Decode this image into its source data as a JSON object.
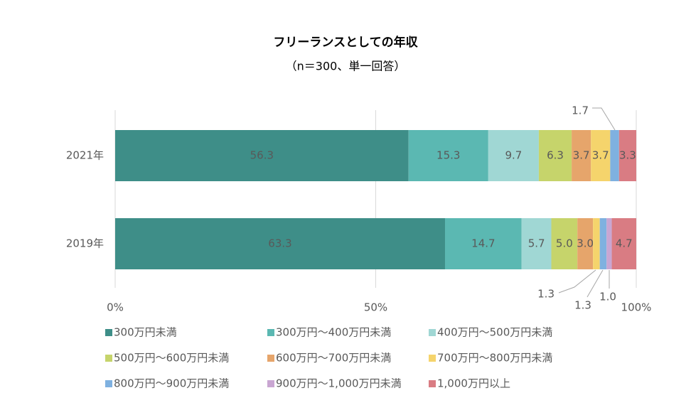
{
  "chart_data": {
    "type": "stacked_barh",
    "title": "フリーランスとしての年収",
    "subtitle": "（n＝300、単一回答）",
    "categories": [
      "2021年",
      "2019年"
    ],
    "xlim": [
      0,
      100
    ],
    "xticks": [
      {
        "value": 0,
        "label": "0%"
      },
      {
        "value": 50,
        "label": "50%"
      },
      {
        "value": 100,
        "label": "100%"
      }
    ],
    "grid": true,
    "legend": "bottom",
    "series": [
      {
        "name": "300万円未満",
        "color": "#3e8e88",
        "values": [
          56.3,
          63.3
        ],
        "value_labels": [
          "56.3",
          "63.3"
        ]
      },
      {
        "name": "300万円～400万円未満",
        "color": "#5bb8b2",
        "values": [
          15.3,
          14.7
        ],
        "value_labels": [
          "15.3",
          "14.7"
        ]
      },
      {
        "name": "400万円～500万円未満",
        "color": "#a0d7d4",
        "values": [
          9.7,
          5.7
        ],
        "value_labels": [
          "9.7",
          "5.7"
        ]
      },
      {
        "name": "500万円～600万円未満",
        "color": "#c6d46b",
        "values": [
          6.3,
          5.0
        ],
        "value_labels": [
          "6.3",
          "5.0"
        ]
      },
      {
        "name": "600万円～700万円未満",
        "color": "#e6a56b",
        "values": [
          3.7,
          3.0
        ],
        "value_labels": [
          "3.7",
          "3.0"
        ]
      },
      {
        "name": "700万円～800万円未満",
        "color": "#f5d46c",
        "values": [
          3.7,
          1.3
        ],
        "value_labels": [
          "3.7",
          "1.3"
        ]
      },
      {
        "name": "800万円～900万円未満",
        "color": "#7fb1e0",
        "values": [
          1.7,
          1.3
        ],
        "value_labels": [
          "1.7",
          "1.3"
        ]
      },
      {
        "name": "900万円～1,000万円未満",
        "color": "#c9a6d2",
        "values": [
          null,
          1.0
        ],
        "value_labels": [
          null,
          "1.0"
        ]
      },
      {
        "name": "1,000万円以上",
        "color": "#d97c83",
        "values": [
          3.3,
          4.7
        ],
        "value_labels": [
          "3.3",
          "4.7"
        ]
      }
    ]
  }
}
